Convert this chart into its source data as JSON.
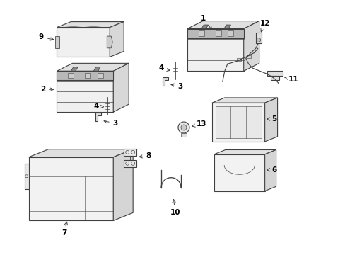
{
  "background_color": "#ffffff",
  "line_color": "#404040",
  "label_color": "#000000",
  "figsize": [
    4.89,
    3.6
  ],
  "dpi": 100
}
